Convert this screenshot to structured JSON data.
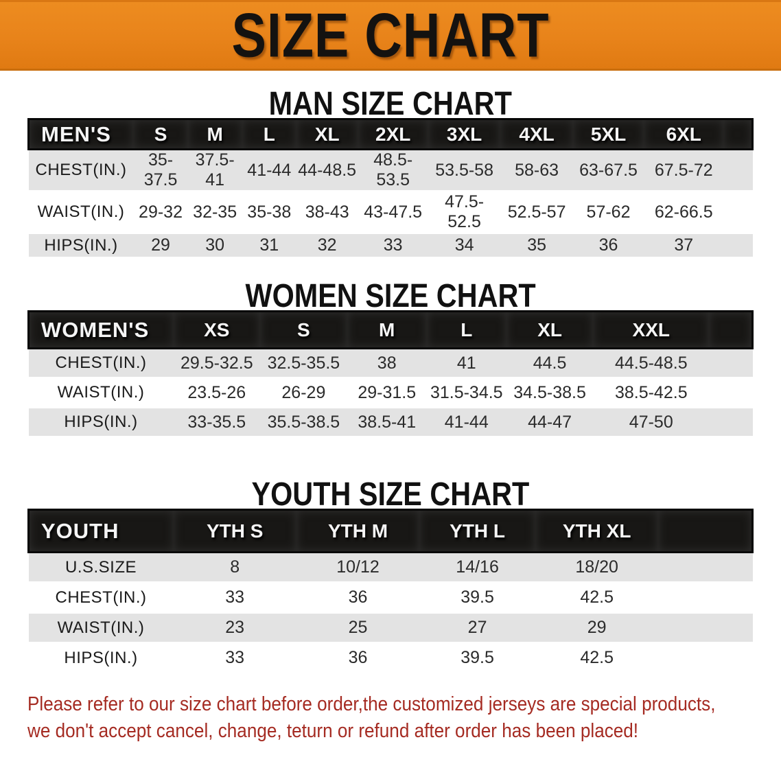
{
  "banner": {
    "title": "SIZE CHART",
    "bg_color": "#e8831a",
    "text_color": "#141210"
  },
  "colors": {
    "header_bar": "#181715",
    "stripe_gray": "#e3e3e3",
    "note_red": "#a52b22"
  },
  "sections": [
    {
      "id": "men",
      "title": "MAN SIZE CHART",
      "table": {
        "corner_label": "MEN'S",
        "columns": [
          "S",
          "M",
          "L",
          "XL",
          "2XL",
          "3XL",
          "4XL",
          "5XL",
          "6XL"
        ],
        "rows": [
          {
            "label": "CHEST(IN.)",
            "values": [
              "35-37.5",
              "37.5-41",
              "41-44",
              "44-48.5",
              "48.5-53.5",
              "53.5-58",
              "58-63",
              "63-67.5",
              "67.5-72"
            ]
          },
          {
            "label": "WAIST(IN.)",
            "values": [
              "29-32",
              "32-35",
              "35-38",
              "38-43",
              "43-47.5",
              "47.5-52.5",
              "52.5-57",
              "57-62",
              "62-66.5"
            ]
          },
          {
            "label": "HIPS(IN.)",
            "values": [
              "29",
              "30",
              "31",
              "32",
              "33",
              "34",
              "35",
              "36",
              "37"
            ]
          }
        ]
      }
    },
    {
      "id": "women",
      "title": "WOMEN SIZE CHART",
      "table": {
        "corner_label": "WOMEN'S",
        "columns": [
          "XS",
          "S",
          "M",
          "L",
          "XL",
          "XXL"
        ],
        "rows": [
          {
            "label": "CHEST(IN.)",
            "values": [
              "29.5-32.5",
              "32.5-35.5",
              "38",
              "41",
              "44.5",
              "44.5-48.5"
            ]
          },
          {
            "label": "WAIST(IN.)",
            "values": [
              "23.5-26",
              "26-29",
              "29-31.5",
              "31.5-34.5",
              "34.5-38.5",
              "38.5-42.5"
            ]
          },
          {
            "label": "HIPS(IN.)",
            "values": [
              "33-35.5",
              "35.5-38.5",
              "38.5-41",
              "41-44",
              "44-47",
              "47-50"
            ]
          }
        ]
      }
    },
    {
      "id": "youth",
      "title": "YOUTH SIZE CHART",
      "table": {
        "corner_label": "YOUTH",
        "columns": [
          "YTH S",
          "YTH M",
          "YTH L",
          "YTH XL"
        ],
        "rows": [
          {
            "label": "U.S.SIZE",
            "values": [
              "8",
              "10/12",
              "14/16",
              "18/20"
            ]
          },
          {
            "label": "CHEST(IN.)",
            "values": [
              "33",
              "36",
              "39.5",
              "42.5"
            ]
          },
          {
            "label": "WAIST(IN.)",
            "values": [
              "23",
              "25",
              "27",
              "29"
            ]
          },
          {
            "label": "HIPS(IN.)",
            "values": [
              "33",
              "36",
              "39.5",
              "42.5"
            ]
          }
        ]
      }
    }
  ],
  "note": {
    "line1": "Please refer to our size chart before order,the customized jerseys are special products,",
    "line2": "we don't accept cancel, change, teturn or refund after order has been placed!"
  }
}
